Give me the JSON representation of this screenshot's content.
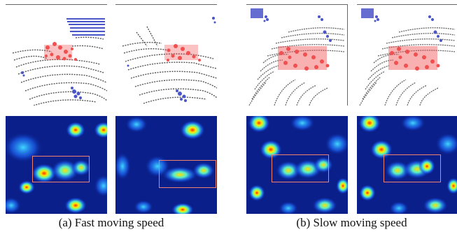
{
  "figure": {
    "captions": {
      "fast": "(a) Fast moving speed",
      "slow": "(b) Slow moving speed"
    },
    "panels": [
      {
        "group": "fast",
        "kind": "point-cloud",
        "frame": 1
      },
      {
        "group": "fast",
        "kind": "point-cloud",
        "frame": 2
      },
      {
        "group": "slow",
        "kind": "point-cloud",
        "frame": 1
      },
      {
        "group": "slow",
        "kind": "point-cloud",
        "frame": 2
      },
      {
        "group": "fast",
        "kind": "heatmap",
        "frame": 1
      },
      {
        "group": "fast",
        "kind": "heatmap",
        "frame": 2
      },
      {
        "group": "slow",
        "kind": "heatmap",
        "frame": 1
      },
      {
        "group": "slow",
        "kind": "heatmap",
        "frame": 2
      }
    ],
    "colors": {
      "lidar_rings": "#555555",
      "object_points": "#f05050",
      "other_points": "#4a55c8",
      "heatmap_background": "#0a1f8a",
      "detection_box": "#f08070"
    }
  }
}
